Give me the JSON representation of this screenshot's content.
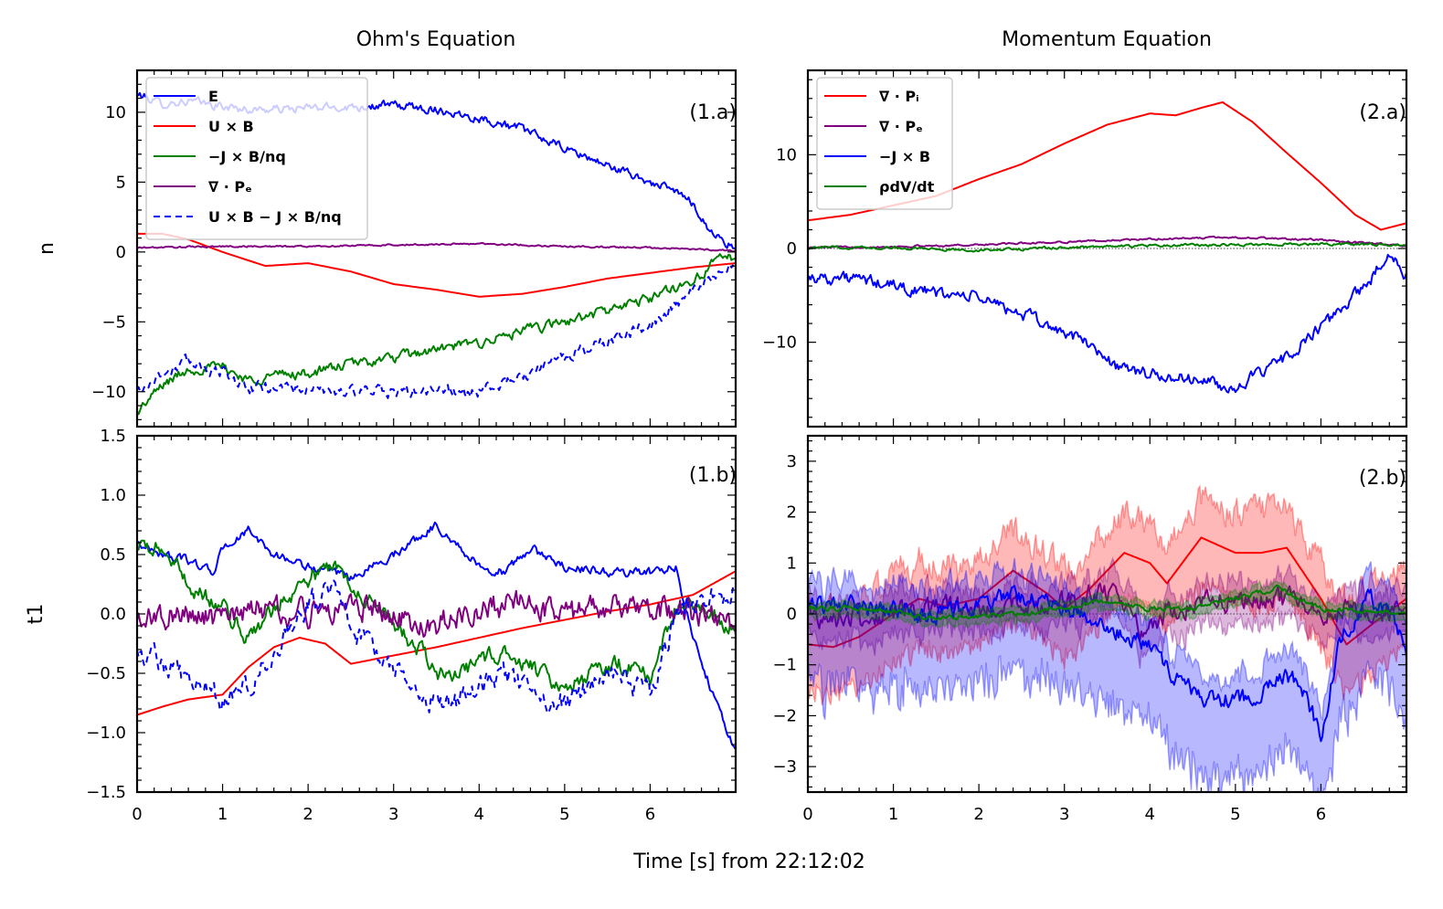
{
  "figure": {
    "xlabel": "Time [s] from 22:12:02"
  },
  "chart_data": [
    {
      "id": "p1a",
      "type": "line",
      "title": "Ohm's Equation",
      "panel_label": "(1.a)",
      "ylabel": "n",
      "xlim": [
        0,
        7
      ],
      "ylim": [
        -12.5,
        13
      ],
      "xticks": [
        0,
        1,
        2,
        3,
        4,
        5,
        6
      ],
      "yticks": [
        -10,
        -5,
        0,
        5,
        10
      ],
      "ytick_labels": [
        "−10",
        "−5",
        "0",
        "5",
        "10"
      ],
      "legend": "top-left",
      "series": [
        {
          "name": "E",
          "color": "#0000ff",
          "dash": "",
          "noise": 0.25,
          "x": [
            0,
            0.3,
            0.6,
            1.0,
            1.3,
            1.6,
            2.0,
            2.5,
            3.0,
            3.5,
            4.0,
            4.5,
            5.0,
            5.5,
            6.0,
            6.3,
            6.5,
            6.7,
            7.0
          ],
          "y": [
            11.3,
            10.6,
            10.8,
            10.4,
            10.2,
            10.2,
            10.3,
            10.4,
            10.5,
            10.2,
            9.6,
            8.8,
            7.4,
            6.2,
            5.0,
            4.3,
            3.5,
            1.5,
            0.2
          ]
        },
        {
          "name": "U×B",
          "color": "#ff0000",
          "dash": "",
          "noise": 0,
          "x": [
            0,
            0.3,
            0.6,
            1.0,
            1.5,
            2.0,
            2.5,
            3.0,
            3.5,
            4.0,
            4.5,
            5.0,
            5.5,
            6.0,
            6.5,
            7.0
          ],
          "y": [
            1.3,
            1.3,
            0.9,
            0.0,
            -1.0,
            -0.8,
            -1.4,
            -2.3,
            -2.7,
            -3.2,
            -3.0,
            -2.5,
            -1.9,
            -1.5,
            -1.1,
            -0.8
          ]
        },
        {
          "name": "−J×B/nq",
          "color": "#008000",
          "dash": "",
          "noise": 0.3,
          "x": [
            0,
            0.3,
            0.6,
            1.0,
            1.3,
            1.6,
            2.0,
            2.5,
            3.0,
            3.5,
            4.0,
            4.5,
            5.0,
            5.5,
            6.0,
            6.5,
            6.8,
            7.0
          ],
          "y": [
            -11.5,
            -9.5,
            -8.4,
            -8.2,
            -9.2,
            -8.8,
            -8.7,
            -8.0,
            -7.6,
            -7.0,
            -6.5,
            -5.7,
            -5.0,
            -4.2,
            -3.3,
            -2.0,
            -0.6,
            -0.3
          ]
        },
        {
          "name": "∇·Pe",
          "color": "#800080",
          "dash": "",
          "noise": 0.05,
          "x": [
            0,
            1,
            2,
            3,
            4,
            5,
            6,
            7
          ],
          "y": [
            0.3,
            0.4,
            0.4,
            0.5,
            0.6,
            0.4,
            0.3,
            0.1
          ]
        },
        {
          "name": "U×B−J×B/nq",
          "color": "#0000ff",
          "dash": "7,5",
          "noise": 0.35,
          "x": [
            0,
            0.3,
            0.6,
            1.0,
            1.3,
            1.6,
            2.0,
            2.5,
            3.0,
            3.5,
            4.0,
            4.5,
            5.0,
            5.5,
            6.0,
            6.5,
            6.8,
            7.0
          ],
          "y": [
            -10.0,
            -8.7,
            -7.8,
            -8.6,
            -9.8,
            -9.6,
            -9.9,
            -10.0,
            -10.0,
            -10.0,
            -10.0,
            -9.0,
            -7.5,
            -6.4,
            -5.2,
            -3.0,
            -1.5,
            -0.9
          ]
        }
      ],
      "legend_entries": [
        {
          "label": "E",
          "color": "#0000ff",
          "dash": ""
        },
        {
          "label": "U × B",
          "color": "#ff0000",
          "dash": ""
        },
        {
          "label": "−J × B/nq",
          "color": "#008000",
          "dash": ""
        },
        {
          "label": "∇ · Pₑ",
          "color": "#800080",
          "dash": ""
        },
        {
          "label": "U × B − J × B/nq",
          "color": "#0000ff",
          "dash": "7,5"
        }
      ]
    },
    {
      "id": "p2a",
      "type": "line",
      "title": "Momentum Equation",
      "panel_label": "(2.a)",
      "ylabel": "",
      "xlim": [
        0,
        7
      ],
      "ylim": [
        -19,
        19
      ],
      "xticks": [
        0,
        1,
        2,
        3,
        4,
        5,
        6
      ],
      "yticks": [
        -10,
        0,
        10
      ],
      "ytick_labels": [
        "−10",
        "0",
        "10"
      ],
      "legend": "top-left",
      "series": [
        {
          "name": "∇·Pi",
          "color": "#ff0000",
          "dash": "",
          "noise": 0,
          "x": [
            0,
            0.5,
            1.0,
            1.5,
            2.0,
            2.5,
            3.0,
            3.5,
            4.0,
            4.3,
            4.6,
            4.85,
            5.2,
            5.6,
            6.0,
            6.4,
            6.7,
            7.0
          ],
          "y": [
            3.0,
            3.6,
            4.6,
            5.6,
            7.4,
            9.0,
            11.2,
            13.2,
            14.4,
            14.2,
            15.0,
            15.6,
            13.5,
            10.2,
            7.0,
            3.6,
            2.0,
            2.7
          ]
        },
        {
          "name": "∇·Pe",
          "color": "#800080",
          "dash": "",
          "noise": 0.08,
          "x": [
            0,
            1,
            2,
            3,
            4,
            5,
            6,
            7
          ],
          "y": [
            0.1,
            0.2,
            0.4,
            0.7,
            1.0,
            1.2,
            0.9,
            0.3
          ]
        },
        {
          "name": "−J×B",
          "color": "#0000ff",
          "dash": "",
          "noise": 0.55,
          "x": [
            0,
            0.5,
            1.0,
            1.5,
            2.0,
            2.5,
            3.0,
            3.3,
            3.6,
            4.0,
            4.3,
            4.6,
            4.9,
            5.3,
            5.6,
            6.0,
            6.3,
            6.6,
            6.8,
            7.0
          ],
          "y": [
            -3.0,
            -3.2,
            -4.0,
            -4.8,
            -5.2,
            -7.0,
            -9.0,
            -10.2,
            -12.5,
            -13.5,
            -13.8,
            -14.0,
            -15.0,
            -13.5,
            -11.5,
            -8.5,
            -6.0,
            -3.0,
            -0.5,
            -2.8
          ]
        },
        {
          "name": "ρdV/dt",
          "color": "#008000",
          "dash": "",
          "noise": 0.12,
          "x": [
            0,
            1,
            2,
            3,
            4,
            5,
            6,
            7
          ],
          "y": [
            0.1,
            0.1,
            -0.2,
            0.1,
            0.3,
            0.4,
            0.5,
            0.4
          ]
        }
      ],
      "legend_entries": [
        {
          "label": "∇ · Pᵢ",
          "color": "#ff0000",
          "dash": ""
        },
        {
          "label": "∇ · Pₑ",
          "color": "#800080",
          "dash": ""
        },
        {
          "label": "−J × B",
          "color": "#0000ff",
          "dash": ""
        },
        {
          "label": "ρdV/dt",
          "color": "#008000",
          "dash": ""
        }
      ]
    },
    {
      "id": "p1b",
      "type": "line",
      "title": "",
      "panel_label": "(1.b)",
      "ylabel": "t1",
      "xlim": [
        0,
        7
      ],
      "ylim": [
        -1.5,
        1.5
      ],
      "xticks": [
        0,
        1,
        2,
        3,
        4,
        5,
        6
      ],
      "xtick_labels": [
        "0",
        "1",
        "2",
        "3",
        "4",
        "5",
        "6"
      ],
      "yticks": [
        -1.5,
        -1.0,
        -0.5,
        0.0,
        0.5,
        1.0,
        1.5
      ],
      "ytick_labels": [
        "−1.5",
        "−1.0",
        "−0.5",
        "0.0",
        "0.5",
        "1.0",
        "1.5"
      ],
      "series": [
        {
          "name": "E",
          "color": "#0000ff",
          "dash": "",
          "noise": 0.03,
          "x": [
            0,
            0.3,
            0.6,
            0.9,
            1.0,
            1.3,
            1.6,
            2.0,
            2.5,
            3.0,
            3.5,
            4.0,
            4.3,
            4.6,
            5.0,
            5.5,
            6.0,
            6.3,
            6.5,
            6.7,
            7.0
          ],
          "y": [
            0.6,
            0.5,
            0.45,
            0.35,
            0.55,
            0.7,
            0.5,
            0.4,
            0.3,
            0.5,
            0.75,
            0.4,
            0.35,
            0.55,
            0.4,
            0.35,
            0.35,
            0.4,
            -0.2,
            -0.6,
            -1.15
          ]
        },
        {
          "name": "U×B",
          "color": "#ff0000",
          "dash": "",
          "noise": 0,
          "x": [
            0,
            0.3,
            0.6,
            1.0,
            1.3,
            1.6,
            1.9,
            2.2,
            2.5,
            3.0,
            3.5,
            4.0,
            4.5,
            5.0,
            5.5,
            6.0,
            6.5,
            7.0
          ],
          "y": [
            -0.85,
            -0.78,
            -0.72,
            -0.68,
            -0.45,
            -0.28,
            -0.2,
            -0.25,
            -0.42,
            -0.35,
            -0.28,
            -0.2,
            -0.12,
            -0.05,
            0.02,
            0.08,
            0.16,
            0.36
          ]
        },
        {
          "name": "−J×B/nq",
          "color": "#008000",
          "dash": "",
          "noise": 0.06,
          "x": [
            0,
            0.3,
            0.6,
            1.0,
            1.3,
            1.6,
            2.0,
            2.3,
            2.6,
            3.0,
            3.3,
            3.6,
            4.0,
            4.3,
            4.6,
            5.0,
            5.3,
            5.6,
            6.0,
            6.3,
            6.6,
            7.0
          ],
          "y": [
            0.55,
            0.55,
            0.25,
            0.05,
            -0.2,
            0.05,
            0.3,
            0.4,
            0.2,
            -0.1,
            -0.3,
            -0.55,
            -0.4,
            -0.3,
            -0.45,
            -0.6,
            -0.5,
            -0.4,
            -0.55,
            0.05,
            0.1,
            -0.15
          ]
        },
        {
          "name": "∇·Pe",
          "color": "#800080",
          "dash": "",
          "noise": 0.09,
          "x": [
            0,
            0.5,
            1.0,
            1.5,
            2.0,
            2.5,
            3.0,
            3.5,
            4.0,
            4.5,
            5.0,
            5.5,
            6.0,
            6.5,
            7.0
          ],
          "y": [
            -0.05,
            0.0,
            -0.05,
            0.05,
            0.0,
            0.1,
            0.0,
            -0.1,
            0.05,
            0.1,
            0.0,
            0.05,
            0.05,
            0.0,
            -0.05
          ]
        },
        {
          "name": "U×B−J×B/nq",
          "color": "#0000ff",
          "dash": "7,5",
          "noise": 0.08,
          "x": [
            0,
            0.3,
            0.6,
            1.0,
            1.3,
            1.6,
            2.0,
            2.3,
            2.6,
            3.0,
            3.3,
            3.6,
            4.0,
            4.3,
            4.6,
            5.0,
            5.3,
            5.6,
            6.0,
            6.3,
            6.6,
            7.0
          ],
          "y": [
            -0.3,
            -0.4,
            -0.55,
            -0.75,
            -0.6,
            -0.3,
            0.1,
            0.2,
            -0.2,
            -0.45,
            -0.7,
            -0.8,
            -0.6,
            -0.5,
            -0.7,
            -0.75,
            -0.6,
            -0.5,
            -0.7,
            0.0,
            0.1,
            0.2
          ]
        }
      ]
    },
    {
      "id": "p2b",
      "type": "line",
      "title": "",
      "panel_label": "(2.b)",
      "ylabel": "",
      "xlim": [
        0,
        7
      ],
      "ylim": [
        -3.5,
        3.5
      ],
      "xticks": [
        0,
        1,
        2,
        3,
        4,
        5,
        6
      ],
      "xtick_labels": [
        "0",
        "1",
        "2",
        "3",
        "4",
        "5",
        "6"
      ],
      "yticks": [
        -3,
        -2,
        -1,
        0,
        1,
        2,
        3
      ],
      "ytick_labels": [
        "−3",
        "−2",
        "−1",
        "0",
        "1",
        "2",
        "3"
      ],
      "series": [
        {
          "name": "∇·Pi",
          "color": "#ff0000",
          "dash": "",
          "noise": 0,
          "band": 0.75,
          "x": [
            0,
            0.3,
            0.6,
            1.0,
            1.3,
            1.6,
            2.0,
            2.4,
            2.8,
            3.0,
            3.3,
            3.7,
            4.0,
            4.2,
            4.6,
            5.0,
            5.3,
            5.6,
            6.0,
            6.3,
            6.6,
            7.0
          ],
          "y": [
            -0.6,
            -0.65,
            -0.45,
            0.0,
            0.3,
            0.15,
            0.3,
            0.85,
            0.4,
            0.1,
            0.5,
            1.2,
            1.0,
            0.6,
            1.5,
            1.2,
            1.2,
            1.3,
            0.3,
            -0.6,
            -0.2,
            0.3
          ]
        },
        {
          "name": "∇·Pe",
          "color": "#800080",
          "dash": "",
          "noise": 0.18,
          "band": 0.35,
          "x": [
            0,
            0.5,
            1.0,
            1.5,
            2.0,
            2.5,
            3.0,
            3.3,
            3.6,
            3.9,
            4.2,
            4.5,
            5.0,
            5.5,
            6.0,
            6.5,
            7.0
          ],
          "y": [
            0.0,
            -0.1,
            0.0,
            0.1,
            0.05,
            0.2,
            0.2,
            0.4,
            0.5,
            -0.3,
            0.05,
            0.2,
            0.3,
            0.3,
            0.05,
            0.1,
            0.05
          ]
        },
        {
          "name": "−J×B",
          "color": "#0000ff",
          "dash": "",
          "noise": 0.15,
          "band_lo": 1.2,
          "band_hi": 0.45,
          "x": [
            0,
            0.5,
            1.0,
            1.5,
            2.0,
            2.5,
            3.0,
            3.3,
            3.6,
            4.0,
            4.3,
            4.6,
            5.0,
            5.3,
            5.6,
            5.8,
            6.0,
            6.2,
            6.5,
            6.8,
            7.0
          ],
          "y": [
            0.2,
            0.15,
            0.05,
            -0.05,
            0.2,
            0.35,
            0.1,
            0.0,
            -0.3,
            -0.6,
            -1.3,
            -1.6,
            -1.7,
            -1.5,
            -1.2,
            -1.5,
            -2.4,
            -0.6,
            0.3,
            0.1,
            -0.7
          ]
        },
        {
          "name": "ρdV/dt",
          "color": "#008000",
          "dash": "",
          "noise": 0.04,
          "band": 0.12,
          "x": [
            0,
            0.5,
            1.0,
            1.5,
            2.0,
            2.5,
            3.0,
            3.5,
            4.0,
            4.5,
            5.0,
            5.5,
            6.0,
            6.5,
            7.0
          ],
          "y": [
            0.1,
            0.1,
            0.05,
            -0.1,
            -0.05,
            0.0,
            0.15,
            0.25,
            0.1,
            0.1,
            0.3,
            0.5,
            0.1,
            0.05,
            0.0
          ]
        }
      ]
    }
  ]
}
